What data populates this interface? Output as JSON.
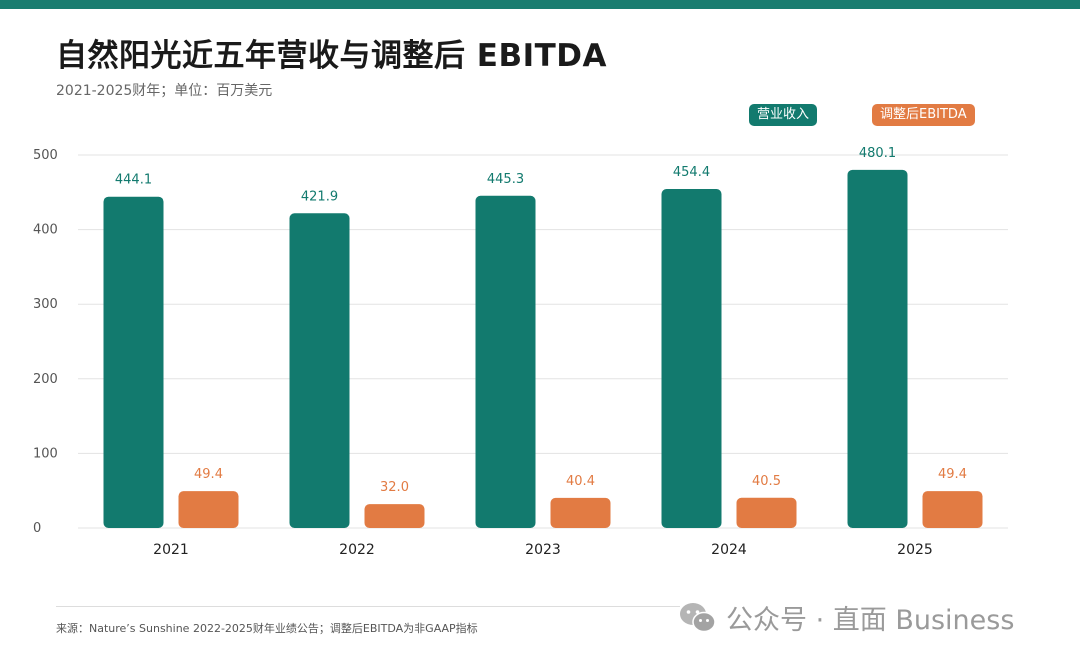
{
  "header": {
    "title": "自然阳光近五年营收与调整后 EBITDA",
    "subtitle": "2021-2025财年；单位：百万美元"
  },
  "colors": {
    "revenue": "#127a6e",
    "ebitda": "#e27b43",
    "revenue_label": "#127a6e",
    "ebitda_label": "#e27b43",
    "grid": "#e3e3e3",
    "axis_text": "#555555"
  },
  "chart_data": {
    "type": "bar",
    "categories": [
      "2021",
      "2022",
      "2023",
      "2024",
      "2025"
    ],
    "series": [
      {
        "name": "营业收入",
        "values": [
          444.1,
          421.9,
          445.3,
          454.4,
          480.1
        ]
      },
      {
        "name": "调整后EBITDA",
        "values": [
          49.4,
          32.0,
          40.4,
          40.5,
          49.4
        ]
      }
    ],
    "data_labels": [
      [
        "444.1",
        "421.9",
        "445.3",
        "454.4",
        "480.1"
      ],
      [
        "49.4",
        "32.0",
        "40.4",
        "40.5",
        "49.4"
      ]
    ],
    "yticks": [
      0,
      100,
      200,
      300,
      400,
      500
    ],
    "ylim": [
      0,
      500
    ],
    "grid": true,
    "legend_position": "top-right"
  },
  "footer": {
    "source": "来源：Nature’s Sunshine 2022-2025财年业绩公告；调整后EBITDA为非GAAP指标"
  },
  "watermark": {
    "text": "公众号 · 直面 Business",
    "icon": "wechat-icon"
  }
}
